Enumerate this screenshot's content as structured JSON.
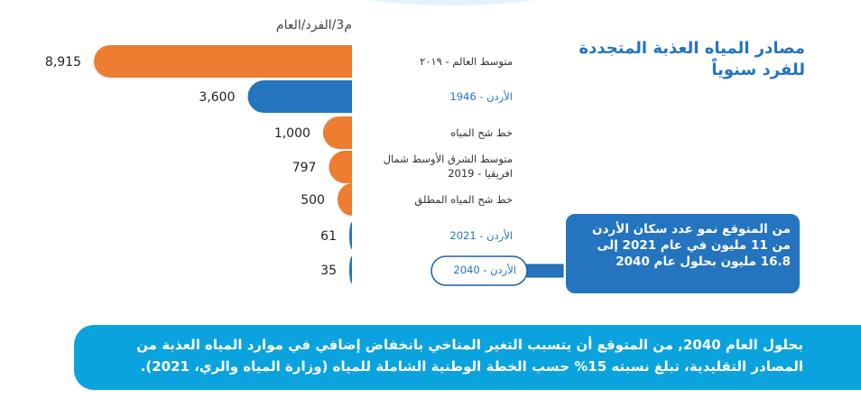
{
  "chart_data": {
    "type": "bar",
    "title": "مصادر المياه العذبة المتجددة للفرد سنوياً",
    "unit_label": "م3/الفرد/العام",
    "categories": [
      "متوسط العالم - ٢٠١٩",
      "الأردن - 1946",
      "خط شح المياه",
      "متوسط الشرق الأوسط شمال افريقيا - 2019",
      "خط شح المياه المطلق",
      "الأردن - 2021",
      "الأردن - 2040"
    ],
    "values": [
      8915,
      3600,
      1000,
      797,
      500,
      61,
      35
    ],
    "value_labels": [
      "8,915",
      "3,600",
      "1,000",
      "797",
      "500",
      "61",
      "35"
    ],
    "colors": [
      "#ec7d31",
      "#2474bf",
      "#ec7d31",
      "#ec7d31",
      "#ec7d31",
      "#2474bf",
      "#2474bf"
    ]
  },
  "callout": "من المتوقع نمو عدد سكان الأردن من 11 مليون في عام 2021 إلى 16.8 مليون بحلول عام 2040",
  "note": "بحلول العام 2040, من المتوقع أن يتسبب التغير المناخي بانخفاض إضافي في موارد المياه العذبة من المصادر التقليدية، تبلغ نسبته  15% حسب الخطة الوطنية الشاملة للمياه (وزارة المياه والري، 2021)."
}
